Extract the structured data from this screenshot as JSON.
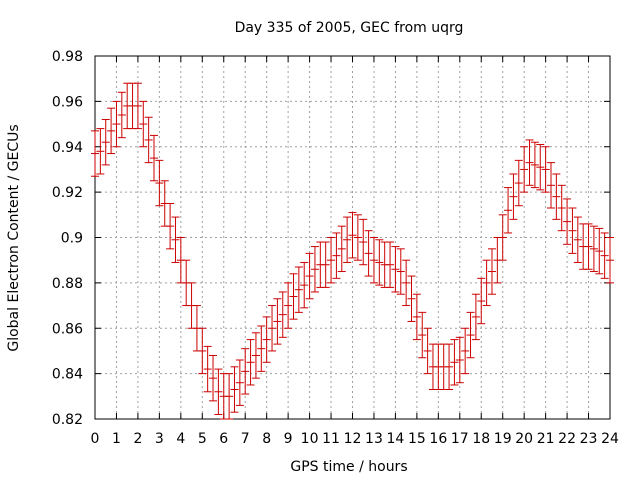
{
  "chart_data": {
    "type": "scatter",
    "title": "Day 335 of 2005, GEC from uqrg",
    "xlabel": "GPS time / hours",
    "ylabel": "Global Electron Content / GECUs",
    "xlim": [
      0,
      24
    ],
    "ylim": [
      0.82,
      0.98
    ],
    "x_ticks": [
      "0",
      "1",
      "2",
      "3",
      "4",
      "5",
      "6",
      "7",
      "8",
      "9",
      "10",
      "11",
      "12",
      "13",
      "14",
      "15",
      "16",
      "17",
      "18",
      "19",
      "20",
      "21",
      "22",
      "23",
      "24"
    ],
    "y_ticks": [
      "0.82",
      "0.84",
      "0.86",
      "0.88",
      "0.9",
      "0.92",
      "0.94",
      "0.96",
      "0.98"
    ],
    "grid": true,
    "series_color": "#cc0000",
    "error_bar": 0.01,
    "series": [
      {
        "x": [
          0.0,
          0.25,
          0.5,
          0.75,
          1.0,
          1.25,
          1.5,
          1.75,
          2.0,
          2.25,
          2.5,
          2.75,
          3.0,
          3.25,
          3.5,
          3.75,
          4.0,
          4.25,
          4.5,
          4.75,
          5.0,
          5.25,
          5.5,
          5.75,
          6.0,
          6.25,
          6.5,
          6.75,
          7.0,
          7.25,
          7.5,
          7.75,
          8.0,
          8.25,
          8.5,
          8.75,
          9.0,
          9.25,
          9.5,
          9.75,
          10.0,
          10.25,
          10.5,
          10.75,
          11.0,
          11.25,
          11.5,
          11.75,
          12.0,
          12.25,
          12.5,
          12.75,
          13.0,
          13.25,
          13.5,
          13.75,
          14.0,
          14.25,
          14.5,
          14.75,
          15.0,
          15.25,
          15.5,
          15.75,
          16.0,
          16.25,
          16.5,
          16.75,
          17.0,
          17.25,
          17.5,
          17.75,
          18.0,
          18.25,
          18.5,
          18.75,
          19.0,
          19.25,
          19.5,
          19.75,
          20.0,
          20.25,
          20.5,
          20.75,
          21.0,
          21.25,
          21.5,
          21.75,
          22.0,
          22.25,
          22.5,
          22.75,
          23.0,
          23.25,
          23.5,
          23.75,
          24.0
        ],
        "y": [
          0.937,
          0.938,
          0.942,
          0.947,
          0.95,
          0.954,
          0.958,
          0.958,
          0.958,
          0.95,
          0.943,
          0.935,
          0.924,
          0.915,
          0.905,
          0.899,
          0.89,
          0.88,
          0.87,
          0.86,
          0.85,
          0.842,
          0.838,
          0.832,
          0.83,
          0.83,
          0.833,
          0.836,
          0.841,
          0.845,
          0.848,
          0.851,
          0.855,
          0.86,
          0.863,
          0.866,
          0.87,
          0.874,
          0.877,
          0.879,
          0.883,
          0.886,
          0.888,
          0.888,
          0.89,
          0.892,
          0.895,
          0.899,
          0.901,
          0.9,
          0.898,
          0.893,
          0.89,
          0.889,
          0.888,
          0.888,
          0.886,
          0.885,
          0.88,
          0.873,
          0.865,
          0.857,
          0.85,
          0.843,
          0.843,
          0.843,
          0.843,
          0.845,
          0.846,
          0.85,
          0.857,
          0.865,
          0.872,
          0.88,
          0.885,
          0.89,
          0.9,
          0.912,
          0.918,
          0.924,
          0.93,
          0.933,
          0.932,
          0.931,
          0.93,
          0.923,
          0.918,
          0.913,
          0.907,
          0.903,
          0.899,
          0.896,
          0.896,
          0.895,
          0.894,
          0.892,
          0.89
        ]
      }
    ]
  }
}
